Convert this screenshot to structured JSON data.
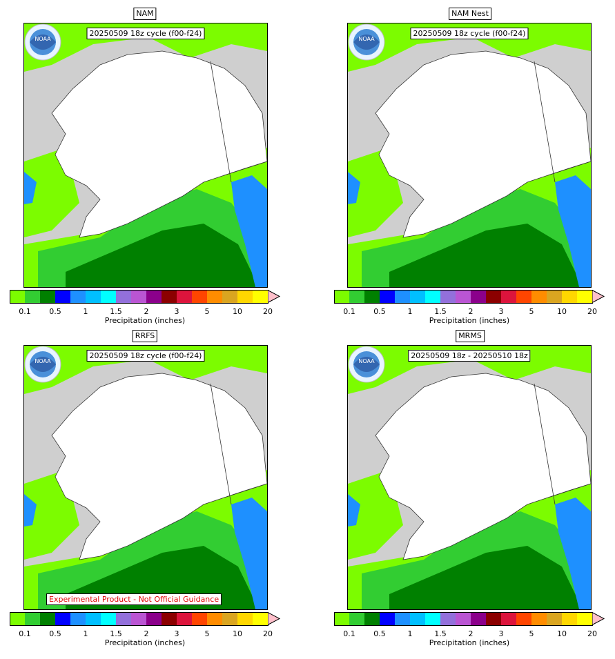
{
  "panels": [
    {
      "title": "NAM",
      "subtitle": "20250509 18z cycle (f00-f24)",
      "disclaimer": ""
    },
    {
      "title": "NAM Nest",
      "subtitle": "20250509 18z cycle (f00-f24)",
      "disclaimer": ""
    },
    {
      "title": "RRFS",
      "subtitle": "20250509 18z cycle (f00-f24)",
      "disclaimer": "Experimental Product - Not Official Guidance"
    },
    {
      "title": "MRMS",
      "subtitle": "20250509 18z - 20250510 18z",
      "disclaimer": ""
    }
  ],
  "logo_text": "NOAA",
  "colorbar": {
    "label": "Precipitation (inches)",
    "tick_labels": [
      "0.1",
      "0.5",
      "1",
      "1.5",
      "2",
      "3",
      "5",
      "10",
      "20"
    ],
    "colors": [
      "#7cfc00",
      "#32cd32",
      "#008000",
      "#0000ff",
      "#1e90ff",
      "#00bfff",
      "#00ffff",
      "#9370db",
      "#ba55d3",
      "#8b008b",
      "#8b0000",
      "#dc143c",
      "#ff4500",
      "#ff8c00",
      "#daa520",
      "#ffd700",
      "#ffff00"
    ],
    "extend_color": "#ffc0cb"
  },
  "map_colors": {
    "land_nodata": "#cfcfcf",
    "light": "#7cfc00",
    "medium": "#32cd32",
    "heavy": "#008000",
    "blue": "#1e90ff",
    "snow_white": "#ffffff"
  }
}
